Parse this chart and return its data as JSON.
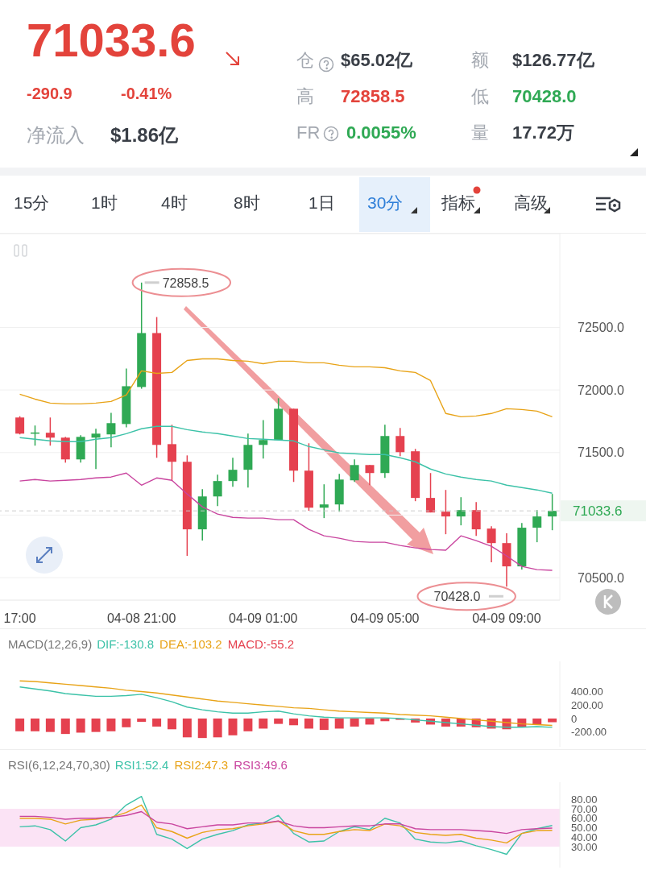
{
  "chart_data": [
    {
      "type": "other",
      "annotations": [
        "71033.6",
        "-290.9",
        "-0.41%",
        "净流入",
        "$1.86亿",
        "仓",
        "$65.02亿",
        "高",
        "72858.5",
        "FR",
        "0.0055%",
        "额",
        "$126.77亿",
        "低",
        "70428.0",
        "量",
        "17.72万",
        "15分",
        "1时",
        "4时",
        "8时",
        "1日",
        "30分",
        "指标",
        "高级"
      ]
    },
    {
      "type": "candlestick",
      "categories": [
        "17:00",
        null,
        null,
        null,
        null,
        null,
        null,
        null,
        "04-08 21:00",
        null,
        null,
        null,
        null,
        null,
        null,
        null,
        "04-09 01:00",
        null,
        null,
        null,
        null,
        null,
        null,
        null,
        "04-09 05:00",
        null,
        null,
        null,
        null,
        null,
        null,
        null,
        "04-09 09:00",
        null,
        null,
        null
      ],
      "ohlc": [
        [
          71780,
          71790,
          71645,
          71651
        ],
        [
          71658,
          71716,
          71555,
          71660
        ],
        [
          71658,
          71780,
          71555,
          71619
        ],
        [
          71619,
          71625,
          71419,
          71445
        ],
        [
          71445,
          71638,
          71419,
          71625
        ],
        [
          71619,
          71690,
          71368,
          71651
        ],
        [
          71645,
          71818,
          71542,
          71735
        ],
        [
          71728,
          72172,
          71702,
          72030
        ],
        [
          72024,
          72858.5,
          72010,
          72455
        ],
        [
          72455,
          72583,
          71458,
          71561
        ],
        [
          71567,
          71722,
          71272,
          71426
        ],
        [
          71426,
          71477,
          70674,
          70886
        ],
        [
          70886,
          71207,
          70796,
          71149
        ],
        [
          71149,
          71323,
          71072,
          71272
        ],
        [
          71272,
          71458,
          71227,
          71362
        ],
        [
          71362,
          71651,
          71220,
          71561
        ],
        [
          71561,
          71760,
          71452,
          71600
        ],
        [
          71600,
          71934,
          71600,
          71850
        ],
        [
          71850,
          71850,
          71265,
          71355
        ],
        [
          71355,
          71574,
          71034,
          71059
        ],
        [
          71059,
          71246,
          70976,
          71085
        ],
        [
          71085,
          71329,
          71027,
          71284
        ],
        [
          71278,
          71445,
          71265,
          71400
        ],
        [
          71400,
          71400,
          71239,
          71336
        ],
        [
          71336,
          71722,
          71297,
          71632
        ],
        [
          71632,
          71696,
          71471,
          71503
        ],
        [
          71510,
          71529,
          71111,
          71137
        ],
        [
          71137,
          71336,
          71021,
          71021
        ],
        [
          71027,
          71201,
          70847,
          70989
        ],
        [
          70989,
          71143,
          70918,
          71040
        ],
        [
          71040,
          71104,
          70834,
          70886
        ],
        [
          70892,
          70911,
          70622,
          70776
        ],
        [
          70776,
          70854,
          70428,
          70590
        ],
        [
          70590,
          70937,
          70564,
          70899
        ],
        [
          70899,
          71040,
          70783,
          70989
        ],
        [
          70989,
          71169,
          70879,
          71033.6
        ]
      ],
      "colors": [
        "#e5414f",
        "#2fa954",
        "#e5414f",
        "#e5414f",
        "#2fa954",
        "#2fa954",
        "#2fa954",
        "#2fa954",
        "#2fa954",
        "#e5414f",
        "#e5414f",
        "#e5414f",
        "#2fa954",
        "#2fa954",
        "#2fa954",
        "#2fa954",
        "#2fa954",
        "#2fa954",
        "#e5414f",
        "#e5414f",
        "#2fa954",
        "#2fa954",
        "#2fa954",
        "#e5414f",
        "#2fa954",
        "#e5414f",
        "#e5414f",
        "#e5414f",
        "#e5414f",
        "#2fa954",
        "#e5414f",
        "#e5414f",
        "#e5414f",
        "#2fa954",
        "#2fa954",
        "#2fa954"
      ],
      "series": [
        {
          "type": "line",
          "color": "#e8a317",
          "values": [
            71966,
            71927,
            71895,
            71889,
            71889,
            71895,
            71908,
            71960,
            72153,
            72133,
            72140,
            72236,
            72249,
            72249,
            72236,
            72230,
            72210,
            72230,
            72230,
            72217,
            72217,
            72198,
            72185,
            72185,
            72178,
            72153,
            72140,
            72075,
            71812,
            71786,
            71792,
            71812,
            71850,
            71844,
            71831,
            71786
          ]
        },
        {
          "type": "line",
          "color": "#3cc2a8",
          "values": [
            71619,
            71606,
            71593,
            71587,
            71587,
            71606,
            71619,
            71651,
            71690,
            71709,
            71709,
            71683,
            71664,
            71651,
            71632,
            71612,
            71606,
            71600,
            71593,
            71548,
            71522,
            71497,
            71490,
            71484,
            71484,
            71458,
            71426,
            71368,
            71329,
            71304,
            71284,
            71272,
            71239,
            71220,
            71201,
            71175
          ]
        },
        {
          "type": "line",
          "color": "#c9459f",
          "values": [
            71272,
            71284,
            71272,
            71278,
            71284,
            71297,
            71304,
            71336,
            71239,
            71297,
            71278,
            71169,
            71066,
            71008,
            70982,
            70976,
            70976,
            70963,
            70963,
            70886,
            70834,
            70815,
            70789,
            70783,
            70783,
            70757,
            70738,
            70725,
            70719,
            70834,
            70796,
            70751,
            70674,
            70590,
            70564,
            70558
          ]
        }
      ],
      "ylim": [
        70320,
        73250
      ],
      "yticks": [
        {
          "value": 70500,
          "label": "70500.0"
        },
        {
          "value": 71000,
          "label": null
        },
        {
          "value": 71500,
          "label": "71500.0"
        },
        {
          "value": 72000,
          "label": "72000.0"
        },
        {
          "value": 72500,
          "label": "72500.0"
        }
      ],
      "grid": "y",
      "ref_lines": [
        {
          "axis": "y",
          "value": 71033.6,
          "label": "71033.6",
          "color": "#cccccc",
          "line_style": "dashed"
        }
      ],
      "annotations": [
        {
          "text": "72858.5",
          "x": "04-08 21:00",
          "y": 72858.5
        },
        {
          "text": "70428.0",
          "x": "04-09 09:00",
          "y": 70428
        }
      ]
    },
    {
      "type": "line",
      "title": "MACD(12,26,9)",
      "categories": [
        null,
        null,
        null,
        null,
        null,
        null,
        null,
        null,
        null,
        null,
        null,
        null,
        null,
        null,
        null,
        null,
        null,
        null,
        null,
        null,
        null,
        null,
        null,
        null,
        null,
        null,
        null,
        null,
        null,
        null,
        null,
        null,
        null,
        null,
        null,
        null
      ],
      "series": [
        {
          "type": "line",
          "name": "DIF:-130.8",
          "color": "#3cc2a8",
          "values": [
            470,
            440,
            410,
            370,
            350,
            330,
            330,
            340,
            360,
            310,
            250,
            170,
            130,
            100,
            80,
            80,
            100,
            110,
            70,
            40,
            20,
            10,
            10,
            10,
            10,
            0,
            -20,
            -40,
            -60,
            -80,
            -100,
            -120,
            -130,
            -130,
            -120,
            -130.8
          ]
        },
        {
          "type": "line",
          "name": "DEA:-103.2",
          "color": "#e8a317",
          "values": [
            560,
            550,
            530,
            510,
            490,
            470,
            450,
            420,
            400,
            380,
            350,
            320,
            290,
            260,
            240,
            220,
            200,
            180,
            160,
            150,
            130,
            110,
            100,
            90,
            80,
            60,
            50,
            40,
            20,
            0,
            -20,
            -40,
            -60,
            -80,
            -90,
            -103.2
          ]
        },
        {
          "type": "bar",
          "name": "MACD:-55.2",
          "color": "#e5414f",
          "values": [
            -190,
            -190,
            -200,
            -230,
            -210,
            -200,
            -190,
            -130,
            -50,
            -120,
            -160,
            -280,
            -290,
            -280,
            -250,
            -190,
            -150,
            -80,
            -100,
            -150,
            -170,
            -150,
            -120,
            -90,
            -40,
            -20,
            -60,
            -90,
            -120,
            -120,
            -130,
            -150,
            -160,
            -130,
            -90,
            -55.2
          ]
        }
      ],
      "ylim": [
        -420,
        850
      ],
      "yticks": [
        {
          "value": 400,
          "label": "400.00"
        },
        {
          "value": 200,
          "label": "200.00"
        },
        {
          "value": 0,
          "label": "0"
        },
        {
          "value": -200,
          "label": "-200.00"
        }
      ],
      "tick_labels": "y",
      "legend": "top left"
    },
    {
      "type": "line",
      "title": "RSI(6,12,24,70,30)",
      "categories": [
        null,
        null,
        null,
        null,
        null,
        null,
        null,
        null,
        null,
        null,
        null,
        null,
        null,
        null,
        null,
        null,
        null,
        null,
        null,
        null,
        null,
        null,
        null,
        null,
        null,
        null,
        null,
        null,
        null,
        null,
        null,
        null,
        null,
        null,
        null,
        null
      ],
      "series": [
        {
          "type": "line",
          "name": "RSI1:52.4",
          "color": "#3cc2a8",
          "values": [
            51,
            52,
            48,
            36,
            50,
            53,
            59,
            74,
            83,
            43,
            38,
            28,
            38,
            43,
            47,
            53,
            55,
            63,
            44,
            35,
            36,
            46,
            51,
            48,
            60,
            55,
            38,
            35,
            34,
            36,
            31,
            27,
            22,
            44,
            49,
            52.4
          ]
        },
        {
          "type": "line",
          "name": "RSI2:47.3",
          "color": "#e8a317",
          "values": [
            60,
            60,
            59,
            54,
            58,
            59,
            61,
            66,
            74,
            50,
            46,
            39,
            45,
            48,
            49,
            52,
            54,
            57,
            47,
            43,
            43,
            46,
            48,
            47,
            54,
            52,
            45,
            43,
            42,
            43,
            39,
            37,
            34,
            44,
            47,
            47.3
          ]
        },
        {
          "type": "line",
          "name": "RSI3:49.6",
          "color": "#c9459f",
          "values": [
            62,
            62,
            61,
            59,
            60,
            60,
            61,
            63,
            67,
            56,
            54,
            49,
            51,
            53,
            53,
            55,
            55,
            57,
            52,
            50,
            50,
            51,
            52,
            52,
            54,
            54,
            49,
            48,
            48,
            48,
            47,
            46,
            44,
            48,
            49,
            49.6
          ]
        }
      ],
      "ylim": [
        8,
        98
      ],
      "yticks": [
        {
          "value": 80,
          "label": "80.00"
        },
        {
          "value": 70,
          "label": "70.00"
        },
        {
          "value": 60,
          "label": "60.00"
        },
        {
          "value": 50,
          "label": "50.00"
        },
        {
          "value": 40,
          "label": "40.00"
        },
        {
          "value": 30,
          "label": "30.00"
        }
      ],
      "bands": [
        {
          "axis": "y",
          "from": 30,
          "to": 70,
          "color": "#fbe3f5"
        }
      ],
      "tick_labels": "y",
      "legend": "top left"
    }
  ]
}
